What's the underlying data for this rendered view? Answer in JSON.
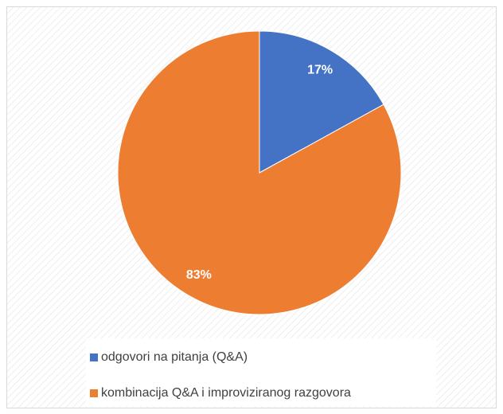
{
  "chart_data": {
    "type": "pie",
    "categories": [
      "odgovori na pitanja (Q&A)",
      "kombinacija Q&A i improviziranog razgovora"
    ],
    "values": [
      17,
      83
    ],
    "value_labels": [
      "17%",
      "83%"
    ],
    "colors": [
      "#4472c4",
      "#ed7d31"
    ],
    "legend": "bottom"
  }
}
